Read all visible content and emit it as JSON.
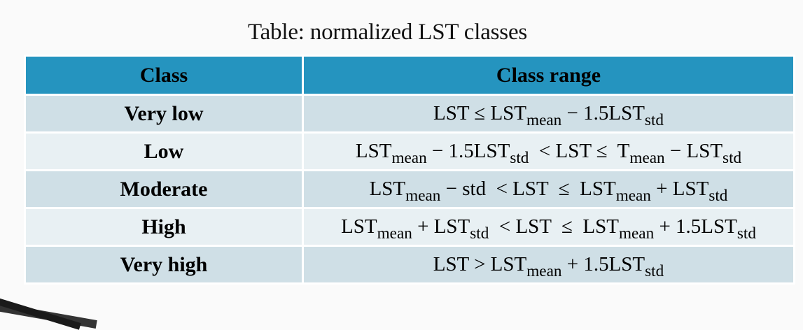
{
  "caption": "Table: normalized LST classes",
  "headers": {
    "class": "Class",
    "range": "Class range"
  },
  "rows": [
    {
      "class": "Very low",
      "range": [
        {
          "t": "LST ≤ LST"
        },
        {
          "s": "mean"
        },
        {
          "t": " − 1.5LST"
        },
        {
          "s": "std"
        }
      ]
    },
    {
      "class": "Low",
      "range": [
        {
          "t": "LST"
        },
        {
          "s": "mean"
        },
        {
          "t": " − 1.5LST"
        },
        {
          "s": "std"
        },
        {
          "t": "  < LST ≤  T"
        },
        {
          "s": "mean"
        },
        {
          "t": " − LST"
        },
        {
          "s": "std"
        }
      ]
    },
    {
      "class": "Moderate",
      "range": [
        {
          "t": "LST"
        },
        {
          "s": "mean"
        },
        {
          "t": " − std  < LST  ≤  LST"
        },
        {
          "s": "mean"
        },
        {
          "t": " + LST"
        },
        {
          "s": "std"
        }
      ]
    },
    {
      "class": "High",
      "range": [
        {
          "t": "LST"
        },
        {
          "s": "mean"
        },
        {
          "t": " + LST"
        },
        {
          "s": "std"
        },
        {
          "t": "  < LST  ≤  LST"
        },
        {
          "s": "mean"
        },
        {
          "t": " + 1.5LST"
        },
        {
          "s": "std"
        }
      ]
    },
    {
      "class": "Very high",
      "range": [
        {
          "t": "LST > LST"
        },
        {
          "s": "mean"
        },
        {
          "t": " + 1.5LST"
        },
        {
          "s": "std"
        }
      ]
    }
  ],
  "colors": {
    "header_bg": "#2594bf",
    "row_dark": "#cfdfe6",
    "row_light": "#e8f0f3"
  }
}
